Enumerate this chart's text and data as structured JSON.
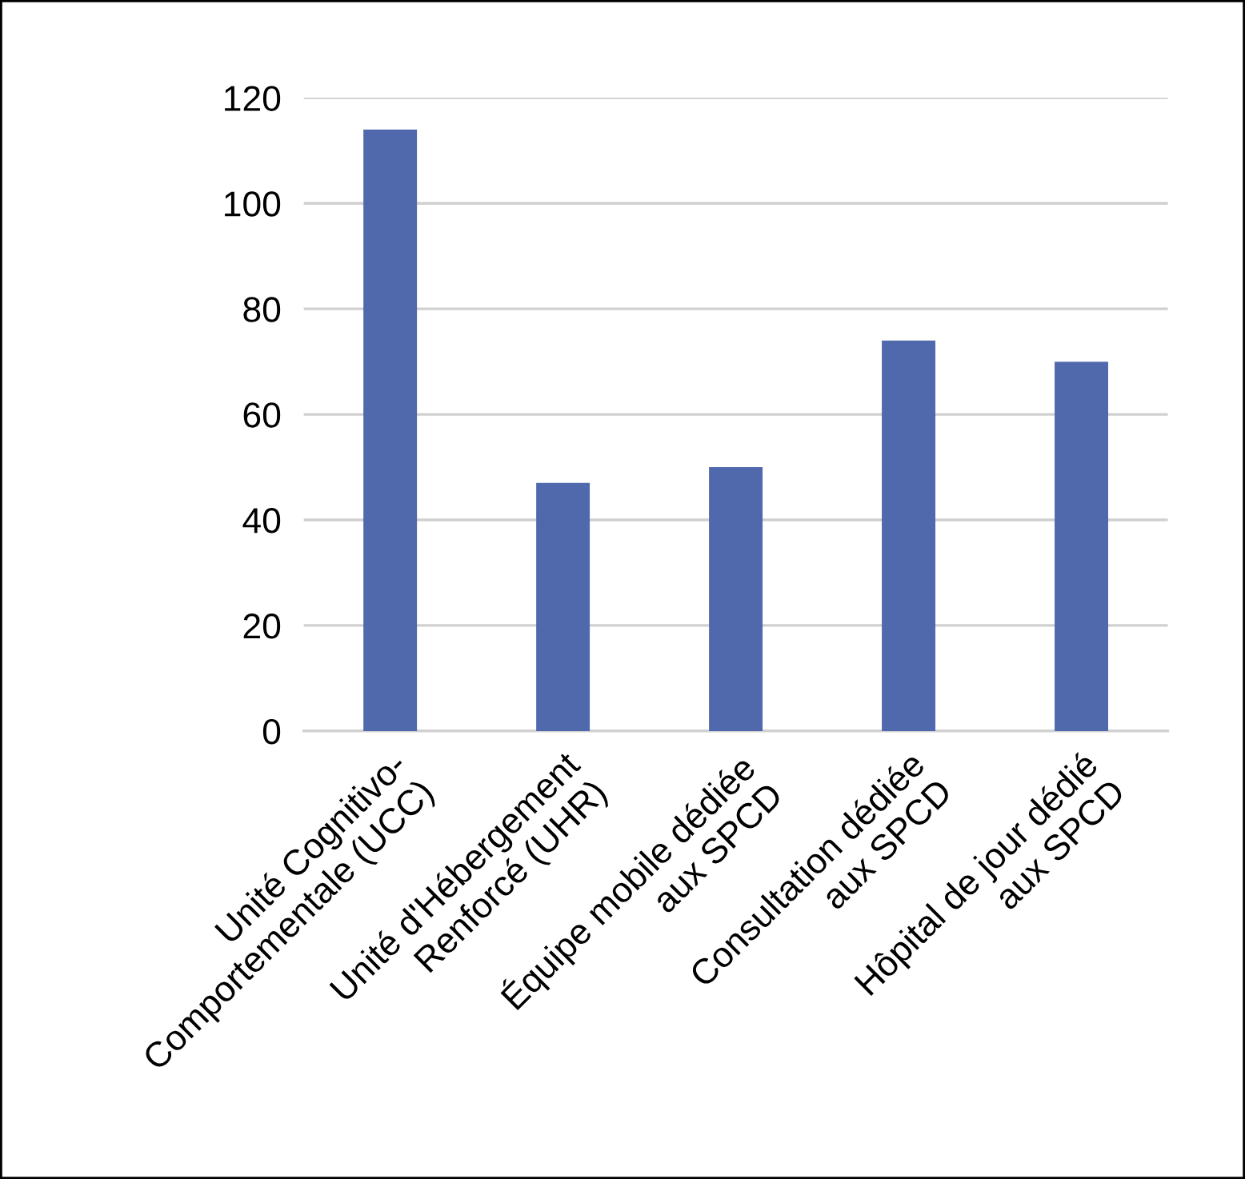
{
  "chart_data": {
    "type": "bar",
    "categories": [
      "Unité Cognitivo-\nComportementale (UCC)",
      "Unité d'Hébergement\nRenforcé (UHR)",
      "Équipe mobile dédiée\naux SPCD",
      "Consultation dédiée\naux SPCD",
      "Hôpital de jour dédié\naux SPCD"
    ],
    "values": [
      114,
      47,
      50,
      74,
      70
    ],
    "color": "#5068ac",
    "ylim": [
      0,
      120
    ],
    "yticks": [
      0,
      20,
      40,
      60,
      80,
      100,
      120
    ],
    "grid": "y",
    "legend": false
  }
}
